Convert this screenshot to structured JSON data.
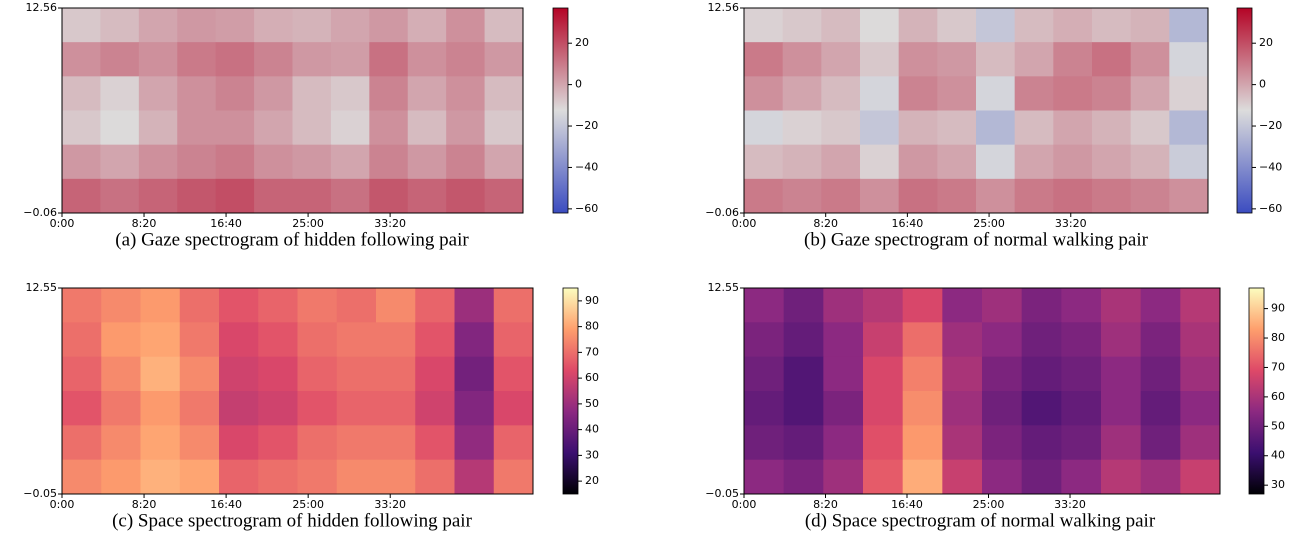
{
  "chart_data": [
    {
      "type": "heatmap",
      "caption": "(a) Gaze spectrogram of hidden following pair",
      "xlim": [
        0,
        2810
      ],
      "xticks": [
        {
          "value": 0,
          "label": "0:00"
        },
        {
          "value": 500,
          "label": "8:20"
        },
        {
          "value": 1000,
          "label": "16:40"
        },
        {
          "value": 1500,
          "label": "25:00"
        },
        {
          "value": 2000,
          "label": "33:20"
        }
      ],
      "ylim": [
        -0.06,
        12.56
      ],
      "yticks": [
        12.56,
        {
          "value": -0.06,
          "label": "−0.06"
        }
      ],
      "clim": [
        -62,
        37
      ],
      "cticks": [
        20,
        0,
        {
          "value": -20,
          "label": "−20"
        },
        {
          "value": -40,
          "label": "−40"
        },
        {
          "value": -60,
          "label": "−60"
        }
      ],
      "colormap": [
        "#3b4cc0",
        "#dcdcdc",
        "#b40426"
      ],
      "z": [
        [
          -8,
          -5,
          0,
          3,
          2,
          -2,
          -3,
          0,
          3,
          -2,
          5,
          -5
        ],
        [
          5,
          8,
          5,
          10,
          12,
          8,
          3,
          2,
          12,
          5,
          8,
          3
        ],
        [
          -5,
          -10,
          0,
          5,
          8,
          3,
          -5,
          -8,
          8,
          0,
          5,
          -5
        ],
        [
          -8,
          -12,
          -3,
          5,
          5,
          0,
          -5,
          -10,
          5,
          -5,
          3,
          -8
        ],
        [
          3,
          0,
          5,
          8,
          10,
          5,
          3,
          0,
          8,
          3,
          8,
          0
        ],
        [
          15,
          12,
          15,
          18,
          20,
          15,
          15,
          12,
          18,
          15,
          18,
          15
        ]
      ]
    },
    {
      "type": "heatmap",
      "caption": "(b) Gaze spectrogram of normal walking pair",
      "xlim": [
        0,
        2840
      ],
      "xticks": [
        {
          "value": 0,
          "label": "0:00"
        },
        {
          "value": 500,
          "label": "8:20"
        },
        {
          "value": 1000,
          "label": "16:40"
        },
        {
          "value": 1500,
          "label": "25:00"
        },
        {
          "value": 2000,
          "label": "33:20"
        }
      ],
      "ylim": [
        -0.06,
        12.56
      ],
      "yticks": [
        12.56,
        {
          "value": -0.06,
          "label": "−0.06"
        }
      ],
      "clim": [
        -62,
        37
      ],
      "cticks": [
        20,
        0,
        {
          "value": -20,
          "label": "−20"
        },
        {
          "value": -40,
          "label": "−40"
        },
        {
          "value": -60,
          "label": "−60"
        }
      ],
      "colormap": [
        "#3b4cc0",
        "#dcdcdc",
        "#b40426"
      ],
      "z": [
        [
          -10,
          -8,
          -5,
          -12,
          -3,
          -8,
          -20,
          -5,
          -2,
          -5,
          -3,
          -25
        ],
        [
          10,
          5,
          0,
          -8,
          5,
          3,
          -5,
          0,
          8,
          12,
          5,
          -15
        ],
        [
          5,
          0,
          -5,
          -15,
          8,
          5,
          -15,
          8,
          10,
          8,
          0,
          -10
        ],
        [
          -15,
          -10,
          -8,
          -20,
          -3,
          -5,
          -25,
          -5,
          0,
          -3,
          -8,
          -25
        ],
        [
          -5,
          -3,
          0,
          -10,
          3,
          0,
          -15,
          0,
          3,
          0,
          -3,
          -18
        ],
        [
          10,
          8,
          10,
          5,
          12,
          10,
          5,
          10,
          12,
          10,
          8,
          5
        ]
      ]
    },
    {
      "type": "heatmap",
      "caption": "(c) Space spectrogram of hidden following pair",
      "xlim": [
        0,
        2870
      ],
      "xticks": [
        {
          "value": 0,
          "label": "0:00"
        },
        {
          "value": 500,
          "label": "8:20"
        },
        {
          "value": 1000,
          "label": "16:40"
        },
        {
          "value": 1500,
          "label": "25:00"
        },
        {
          "value": 2000,
          "label": "33:20"
        }
      ],
      "ylim": [
        -0.05,
        12.55
      ],
      "yticks": [
        12.55,
        {
          "value": -0.05,
          "label": "−0.05"
        }
      ],
      "clim": [
        15,
        95
      ],
      "cticks": [
        90,
        80,
        70,
        60,
        50,
        40,
        30,
        20
      ],
      "colormap": [
        "#000004",
        "#3b0f70",
        "#8c2981",
        "#de4968",
        "#fe9f6d",
        "#fcfdbf"
      ],
      "z": [
        [
          72,
          75,
          78,
          70,
          65,
          68,
          72,
          70,
          75,
          68,
          50,
          70
        ],
        [
          70,
          78,
          80,
          72,
          62,
          65,
          70,
          72,
          72,
          65,
          45,
          68
        ],
        [
          68,
          75,
          82,
          75,
          60,
          62,
          68,
          70,
          70,
          62,
          42,
          65
        ],
        [
          65,
          72,
          78,
          72,
          58,
          60,
          65,
          68,
          68,
          60,
          45,
          62
        ],
        [
          70,
          75,
          80,
          75,
          62,
          65,
          70,
          72,
          72,
          65,
          48,
          68
        ],
        [
          75,
          78,
          82,
          80,
          68,
          70,
          72,
          75,
          75,
          70,
          55,
          72
        ]
      ]
    },
    {
      "type": "heatmap",
      "caption": "(d) Space spectrogram of normal walking pair",
      "xlim": [
        0,
        2920
      ],
      "xticks": [
        {
          "value": 0,
          "label": "0:00"
        },
        {
          "value": 500,
          "label": "8:20"
        },
        {
          "value": 1000,
          "label": "16:40"
        },
        {
          "value": 1500,
          "label": "25:00"
        },
        {
          "value": 2000,
          "label": "33:20"
        }
      ],
      "ylim": [
        -0.05,
        12.55
      ],
      "yticks": [
        12.55,
        {
          "value": -0.05,
          "label": "−0.05"
        }
      ],
      "clim": [
        27,
        97
      ],
      "cticks": [
        90,
        80,
        70,
        60,
        50,
        40,
        30
      ],
      "colormap": [
        "#000004",
        "#3b0f70",
        "#8c2981",
        "#de4968",
        "#fe9f6d",
        "#fcfdbf"
      ],
      "z": [
        [
          55,
          50,
          58,
          62,
          68,
          55,
          58,
          52,
          55,
          60,
          55,
          62
        ],
        [
          52,
          48,
          55,
          65,
          75,
          58,
          55,
          50,
          52,
          58,
          52,
          60
        ],
        [
          50,
          45,
          55,
          68,
          78,
          60,
          52,
          48,
          50,
          55,
          50,
          58
        ],
        [
          48,
          45,
          52,
          68,
          80,
          58,
          50,
          45,
          48,
          55,
          48,
          55
        ],
        [
          50,
          48,
          55,
          70,
          82,
          60,
          52,
          48,
          50,
          58,
          50,
          58
        ],
        [
          55,
          52,
          58,
          72,
          85,
          65,
          55,
          50,
          55,
          62,
          58,
          65
        ]
      ]
    }
  ]
}
